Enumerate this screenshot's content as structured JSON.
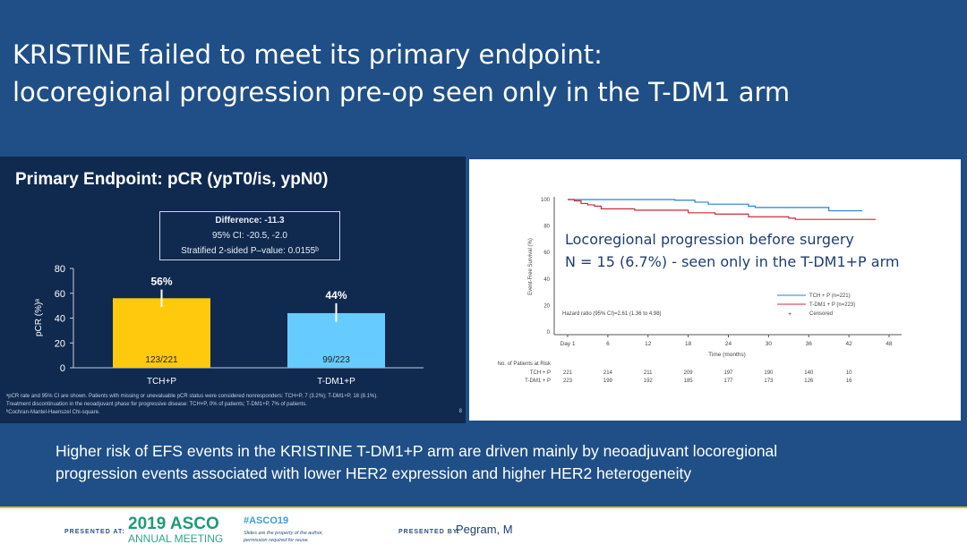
{
  "title": {
    "line1": "KRISTINE failed to meet its primary endpoint:",
    "line2": "locoregional progression pre-op seen only in the T-DM1 arm"
  },
  "left_panel": {
    "heading": "Primary Endpoint: pCR (ypT0/is, ypN0)",
    "difference": "Difference: -11.3",
    "ci": "95% CI: -20.5, -2.0",
    "pvalue": "Stratified 2-sided P–value: 0.0155ᵇ",
    "footnotes": [
      "ᵃpCR rate and 95% CI are shown. Patients with missing or unevaluable pCR status were considered nonresponders: TCH+P, 7 (3.2%); T-DM1+P, 18 (8.1%).",
      "Treatment discontinuation in the neoadjuvant phase for progressive disease: TCH+P, 0% of patients; T-DM1+P, 7% of patients.",
      "ᵇCochran-Mantel-Haenszel Chi-square."
    ],
    "page": "8"
  },
  "overlay": {
    "line1": "Locoregional progression before surgery",
    "line2": "N = 15 (6.7%) - seen only in the T-DM1+P arm"
  },
  "summary": {
    "line1": "Higher risk of EFS events in the KRISTINE T-DM1+P arm are driven mainly by neoadjuvant locoregional",
    "line2": "progression events associated with lower HER2 expression and higher HER2 heterogeneity"
  },
  "footer": {
    "presented_at": "PRESENTED AT:",
    "asco_year": "2019 ASCO",
    "asco_meeting": "ANNUAL MEETING",
    "hashtag": "#ASCO19",
    "disclaimer1": "Slides are the property of the author,",
    "disclaimer2": "permission required for reuse.",
    "presented_by": "PRESENTED BY:",
    "presenter": "Pegram, M"
  },
  "chart_data": [
    {
      "type": "bar",
      "ylabel": "pCR (%)ᵃ",
      "ylim": [
        0,
        80
      ],
      "yticks": [
        0,
        20,
        40,
        60,
        80
      ],
      "categories": [
        "TCH+P",
        "T-DM1+P"
      ],
      "values": [
        56,
        44
      ],
      "labels": [
        "56%",
        "44%"
      ],
      "counts": [
        "123/221",
        "99/223"
      ],
      "ci": [
        [
          49,
          63
        ],
        [
          37,
          52
        ]
      ],
      "colors": [
        "#ffc90e",
        "#66ccff"
      ]
    },
    {
      "type": "line",
      "ylabel": "Event-Free Survival (%)",
      "xlabel": "Time (months)",
      "ylim": [
        0,
        100
      ],
      "yticks": [
        0,
        20,
        40,
        60,
        80,
        100
      ],
      "xticks": [
        0,
        6,
        12,
        18,
        24,
        30,
        36,
        42,
        48
      ],
      "xticklabels": [
        "Day 1",
        "6",
        "12",
        "18",
        "24",
        "30",
        "36",
        "42",
        "48"
      ],
      "series": [
        {
          "name": "TCH + P (n=221)",
          "color": "#2f7fd0",
          "x": [
            0,
            6,
            16,
            19,
            21,
            27,
            28,
            39,
            44
          ],
          "y": [
            100,
            100,
            99.5,
            98,
            96.5,
            95,
            94,
            91.5,
            91.5
          ]
        },
        {
          "name": "T-DM1 + P (n=223)",
          "color": "#cc2b3a",
          "x": [
            0,
            1,
            2,
            3,
            4,
            5,
            10,
            18,
            22,
            27,
            33,
            34,
            46
          ],
          "y": [
            100,
            99,
            97,
            96,
            95,
            93,
            92,
            90,
            89,
            87,
            86,
            85,
            85
          ]
        }
      ],
      "censored_label": "Censored",
      "hazard_ratio": "Hazard ratio (95% CI)=2.61 (1.36 to 4.98)",
      "risk_table": {
        "title": "No. of Patients at Risk",
        "rows": [
          {
            "label": "TCH + P",
            "values": [
              "221",
              "214",
              "211",
              "209",
              "197",
              "190",
              "140",
              "10"
            ]
          },
          {
            "label": "T-DM1 + P",
            "values": [
              "223",
              "199",
              "192",
              "185",
              "177",
              "173",
              "126",
              "16"
            ]
          }
        ]
      }
    }
  ]
}
